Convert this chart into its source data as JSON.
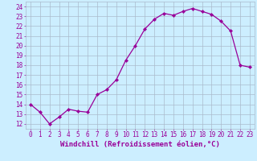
{
  "x": [
    0,
    1,
    2,
    3,
    4,
    5,
    6,
    7,
    8,
    9,
    10,
    11,
    12,
    13,
    14,
    15,
    16,
    17,
    18,
    19,
    20,
    21,
    22,
    23
  ],
  "y": [
    14,
    13.2,
    12,
    12.7,
    13.5,
    13.3,
    13.2,
    15,
    15.5,
    16.5,
    18.5,
    20,
    21.7,
    22.7,
    23.3,
    23.1,
    23.5,
    23.8,
    23.5,
    23.2,
    22.5,
    21.5,
    18,
    17.8
  ],
  "line_color": "#990099",
  "marker": "D",
  "markersize": 2.2,
  "linewidth": 0.9,
  "bg_color": "#cceeff",
  "grid_color": "#aabbcc",
  "xlabel": "Windchill (Refroidissement éolien,°C)",
  "xlabel_color": "#990099",
  "xlabel_fontsize": 6.5,
  "tick_color": "#990099",
  "tick_fontsize": 5.5,
  "ylim": [
    11.5,
    24.5
  ],
  "xlim": [
    -0.5,
    23.5
  ],
  "yticks": [
    12,
    13,
    14,
    15,
    16,
    17,
    18,
    19,
    20,
    21,
    22,
    23,
    24
  ],
  "xticks": [
    0,
    1,
    2,
    3,
    4,
    5,
    6,
    7,
    8,
    9,
    10,
    11,
    12,
    13,
    14,
    15,
    16,
    17,
    18,
    19,
    20,
    21,
    22,
    23
  ]
}
